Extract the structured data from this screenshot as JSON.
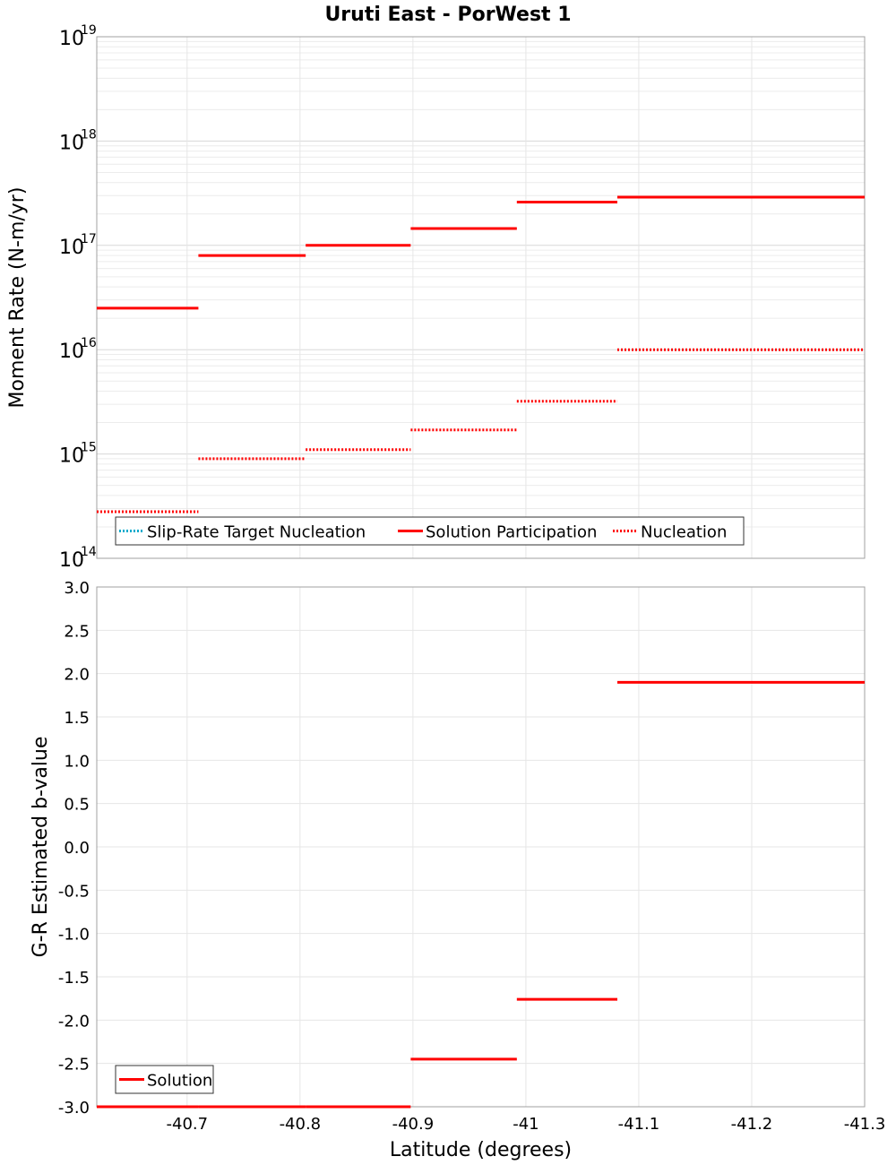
{
  "title": "Uruti East - PorWest 1",
  "top_plot": {
    "ylabel": "Moment Rate (N-m/yr)",
    "y_tick_base": "10",
    "y_tick_exponents": [
      "14",
      "15",
      "16",
      "17",
      "18",
      "19"
    ]
  },
  "bottom_plot": {
    "ylabel": "G-R Estimated b-value",
    "y_tick_labels": [
      "3.0",
      "2.5",
      "2.0",
      "1.5",
      "1.0",
      "0.5",
      "0.0",
      "-0.5",
      "-1.0",
      "-1.5",
      "-2.0",
      "-2.5",
      "-3.0"
    ]
  },
  "x_axis": {
    "xlabel": "Latitude (degrees)",
    "tick_labels": [
      "-40.7",
      "-40.8",
      "-40.9",
      "-41",
      "-41.1",
      "-41.2",
      "-41.3"
    ]
  },
  "legend_top": {
    "items": [
      {
        "label": "Slip-Rate Target Nucleation",
        "color": "#00aacc",
        "style": "dotted"
      },
      {
        "label": "Solution Participation",
        "color": "#ff0000",
        "style": "solid"
      },
      {
        "label": "Nucleation",
        "color": "#ff0000",
        "style": "dotted"
      }
    ]
  },
  "legend_bottom": {
    "items": [
      {
        "label": "Solution",
        "color": "#ff0000",
        "style": "solid"
      }
    ]
  },
  "chart_data": [
    {
      "type": "line",
      "title": "Uruti East - PorWest 1",
      "xlabel": "",
      "ylabel": "Moment Rate (N-m/yr)",
      "y_scale": "log",
      "xlim": [
        -40.62,
        -41.3
      ],
      "ylim": [
        100000000000000.0,
        1e+19
      ],
      "grid": true,
      "legend_position": "bottom-left",
      "series": [
        {
          "name": "Solution Participation",
          "style": "solid",
          "color": "#ff0000",
          "segments": [
            {
              "x": [
                -40.62,
                -40.71
              ],
              "y": 2.5e+16
            },
            {
              "x": [
                -40.71,
                -40.805
              ],
              "y": 8e+16
            },
            {
              "x": [
                -40.805,
                -40.898
              ],
              "y": 1e+17
            },
            {
              "x": [
                -40.898,
                -40.992
              ],
              "y": 1.45e+17
            },
            {
              "x": [
                -40.992,
                -41.081
              ],
              "y": 2.6e+17
            },
            {
              "x": [
                -41.081,
                -41.3
              ],
              "y": 2.9e+17
            }
          ]
        },
        {
          "name": "Nucleation",
          "style": "dotted",
          "color": "#ff0000",
          "segments": [
            {
              "x": [
                -40.62,
                -40.71
              ],
              "y": 280000000000000.0
            },
            {
              "x": [
                -40.71,
                -40.805
              ],
              "y": 900000000000000.0
            },
            {
              "x": [
                -40.805,
                -40.898
              ],
              "y": 1100000000000000.0
            },
            {
              "x": [
                -40.898,
                -40.992
              ],
              "y": 1700000000000000.0
            },
            {
              "x": [
                -40.992,
                -41.081
              ],
              "y": 3200000000000000.0
            },
            {
              "x": [
                -41.081,
                -41.3
              ],
              "y": 1e+16
            }
          ]
        },
        {
          "name": "Slip-Rate Target Nucleation",
          "style": "dotted",
          "color": "#00aacc",
          "segments": []
        }
      ]
    },
    {
      "type": "line",
      "title": "",
      "xlabel": "Latitude (degrees)",
      "ylabel": "G-R Estimated b-value",
      "xlim": [
        -40.62,
        -41.3
      ],
      "ylim": [
        -3.0,
        3.0
      ],
      "grid": true,
      "legend_position": "bottom-left",
      "series": [
        {
          "name": "Solution",
          "style": "solid",
          "color": "#ff0000",
          "segments": [
            {
              "x": [
                -40.62,
                -40.71
              ],
              "y": -3.0
            },
            {
              "x": [
                -40.71,
                -40.805
              ],
              "y": -3.0
            },
            {
              "x": [
                -40.805,
                -40.898
              ],
              "y": -3.0
            },
            {
              "x": [
                -40.898,
                -40.992
              ],
              "y": -2.45
            },
            {
              "x": [
                -40.992,
                -41.081
              ],
              "y": -1.76
            },
            {
              "x": [
                -41.081,
                -41.3
              ],
              "y": 1.9
            }
          ]
        }
      ]
    }
  ]
}
